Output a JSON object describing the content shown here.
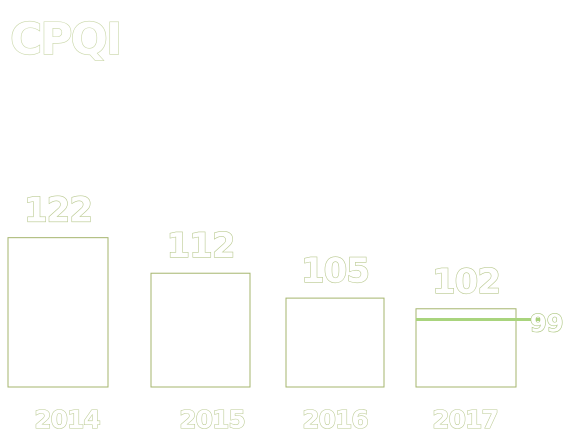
{
  "chart_data": {
    "type": "bar",
    "title": "CPQI",
    "categories": [
      "2014",
      "2015",
      "2016",
      "2017"
    ],
    "values": [
      122,
      112,
      105,
      102
    ],
    "value_labels": [
      "122",
      "112",
      "105",
      "102"
    ],
    "ylim": [
      80,
      125
    ],
    "grid": false,
    "target": {
      "value": 99,
      "label": "99",
      "category": "2017"
    },
    "colors": {
      "bar_stroke": "#a6b56e",
      "target_line": "#a9d47d",
      "text_outline": "#b9c98f"
    }
  }
}
